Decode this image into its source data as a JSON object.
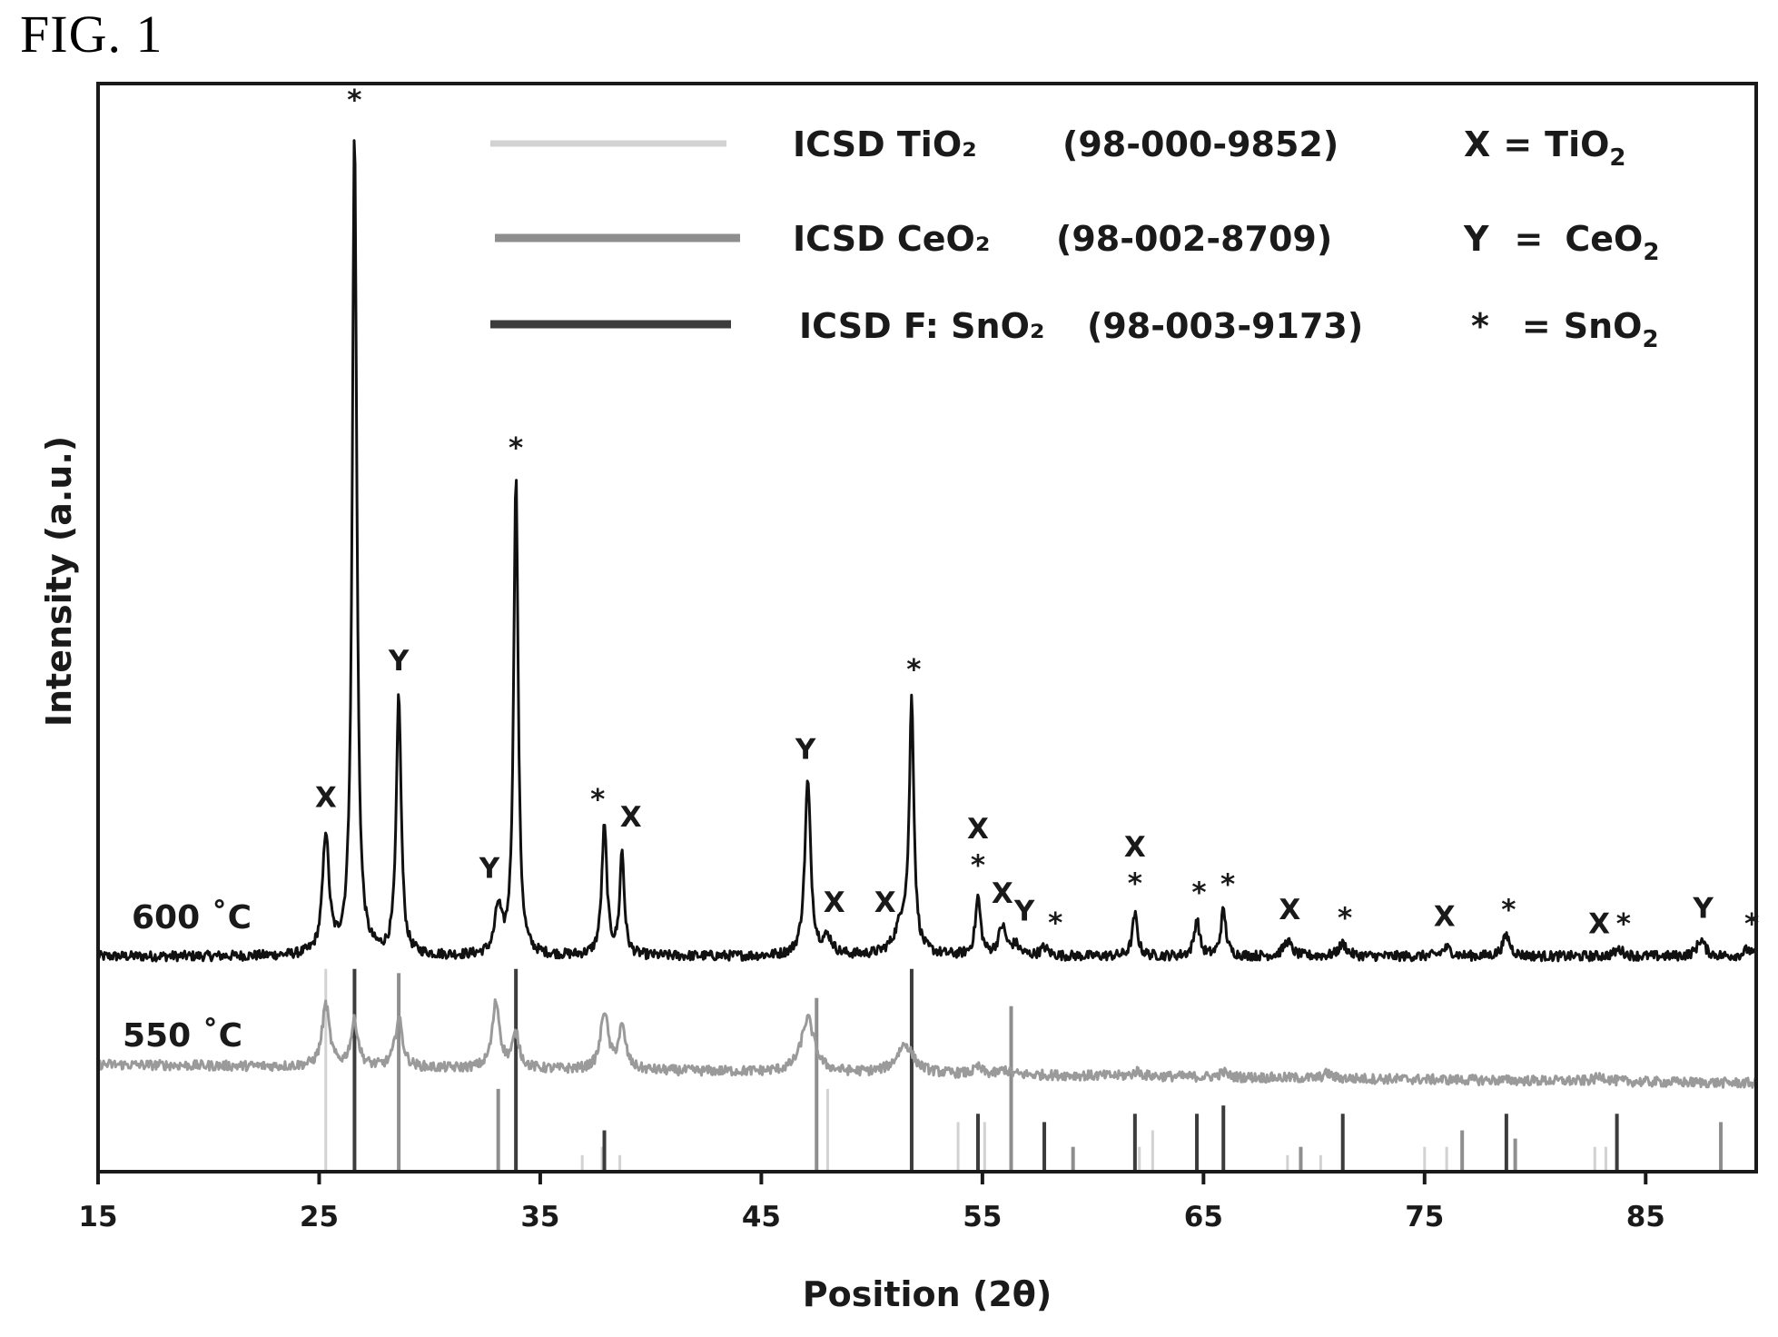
{
  "figure_label": "FIG. 1",
  "chart_data": {
    "type": "line",
    "xlabel": "Position (2θ)",
    "ylabel": "Intensity (a.u.)",
    "xlim": [
      15,
      90
    ],
    "x_ticks": [
      15,
      25,
      35,
      45,
      55,
      65,
      75,
      85
    ],
    "y_ticks_shown": false,
    "colors": {
      "sample_600": "#111111",
      "sample_550": "#9a9a9a",
      "ref_TiO2": "#d2d2d2",
      "ref_CeO2": "#8e8e8e",
      "ref_SnO2": "#3c3c3c"
    },
    "series": [
      {
        "name": "600 ˚C",
        "label": "600 ˚C",
        "color": "#111111",
        "baseline": 0.15,
        "peaks": [
          {
            "x": 25.3,
            "h": 0.145,
            "w": 0.17
          },
          {
            "x": 26.6,
            "h": 1.0,
            "w": 0.12
          },
          {
            "x": 28.6,
            "h": 0.315,
            "w": 0.13
          },
          {
            "x": 33.1,
            "h": 0.055,
            "w": 0.18
          },
          {
            "x": 33.9,
            "h": 0.58,
            "w": 0.12
          },
          {
            "x": 37.9,
            "h": 0.155,
            "w": 0.14
          },
          {
            "x": 38.7,
            "h": 0.125,
            "w": 0.12
          },
          {
            "x": 47.1,
            "h": 0.21,
            "w": 0.16
          },
          {
            "x": 48.0,
            "h": 0.02,
            "w": 0.25
          },
          {
            "x": 51.4,
            "h": 0.04,
            "w": 0.4
          },
          {
            "x": 51.8,
            "h": 0.295,
            "w": 0.12
          },
          {
            "x": 54.8,
            "h": 0.07,
            "w": 0.14
          },
          {
            "x": 55.9,
            "h": 0.035,
            "w": 0.2
          },
          {
            "x": 56.5,
            "h": 0.012,
            "w": 0.2
          },
          {
            "x": 57.8,
            "h": 0.01,
            "w": 0.2
          },
          {
            "x": 61.9,
            "h": 0.05,
            "w": 0.14
          },
          {
            "x": 64.7,
            "h": 0.045,
            "w": 0.14
          },
          {
            "x": 65.9,
            "h": 0.055,
            "w": 0.14
          },
          {
            "x": 68.8,
            "h": 0.018,
            "w": 0.22
          },
          {
            "x": 71.3,
            "h": 0.015,
            "w": 0.22
          },
          {
            "x": 78.7,
            "h": 0.025,
            "w": 0.2
          },
          {
            "x": 76.0,
            "h": 0.01,
            "w": 0.25
          },
          {
            "x": 83.8,
            "h": 0.008,
            "w": 0.25
          },
          {
            "x": 87.5,
            "h": 0.02,
            "w": 0.22
          },
          {
            "x": 89.6,
            "h": 0.008,
            "w": 0.2
          }
        ]
      },
      {
        "name": "550 ˚C",
        "label": "550 ˚C",
        "color": "#9a9a9a",
        "baseline": 0.0,
        "peaks": [
          {
            "x": 25.3,
            "h": 0.075,
            "w": 0.2
          },
          {
            "x": 26.6,
            "h": 0.055,
            "w": 0.2
          },
          {
            "x": 28.6,
            "h": 0.06,
            "w": 0.2
          },
          {
            "x": 33.0,
            "h": 0.08,
            "w": 0.2
          },
          {
            "x": 33.9,
            "h": 0.04,
            "w": 0.2
          },
          {
            "x": 37.9,
            "h": 0.07,
            "w": 0.2
          },
          {
            "x": 38.7,
            "h": 0.05,
            "w": 0.2
          },
          {
            "x": 47.1,
            "h": 0.065,
            "w": 0.35
          },
          {
            "x": 51.5,
            "h": 0.035,
            "w": 0.45
          },
          {
            "x": 54.8,
            "h": 0.008,
            "w": 0.2
          },
          {
            "x": 56.0,
            "h": 0.006,
            "w": 0.2
          },
          {
            "x": 62.0,
            "h": 0.006,
            "w": 0.2
          },
          {
            "x": 65.9,
            "h": 0.006,
            "w": 0.2
          },
          {
            "x": 70.6,
            "h": 0.006,
            "w": 0.2
          },
          {
            "x": 83.0,
            "h": 0.006,
            "w": 0.3
          }
        ]
      }
    ],
    "reference_patterns": [
      {
        "name": "ICSD TiO₂",
        "code": "(98-000-9852)",
        "color": "#d2d2d2",
        "lines": [
          {
            "x": 25.3,
            "h": 0.245
          },
          {
            "x": 36.9,
            "h": 0.02
          },
          {
            "x": 37.8,
            "h": 0.03
          },
          {
            "x": 38.6,
            "h": 0.02
          },
          {
            "x": 48.0,
            "h": 0.1
          },
          {
            "x": 53.9,
            "h": 0.06
          },
          {
            "x": 55.1,
            "h": 0.06
          },
          {
            "x": 62.1,
            "h": 0.03
          },
          {
            "x": 62.7,
            "h": 0.05
          },
          {
            "x": 68.8,
            "h": 0.02
          },
          {
            "x": 70.3,
            "h": 0.02
          },
          {
            "x": 75.0,
            "h": 0.03
          },
          {
            "x": 76.0,
            "h": 0.03
          },
          {
            "x": 82.7,
            "h": 0.03
          },
          {
            "x": 83.2,
            "h": 0.03
          }
        ]
      },
      {
        "name": "ICSD CeO₂",
        "code": "(98-002-8709)",
        "color": "#8e8e8e",
        "lines": [
          {
            "x": 28.6,
            "h": 0.24
          },
          {
            "x": 33.1,
            "h": 0.1
          },
          {
            "x": 47.5,
            "h": 0.21
          },
          {
            "x": 56.3,
            "h": 0.2
          },
          {
            "x": 59.1,
            "h": 0.03
          },
          {
            "x": 69.4,
            "h": 0.03
          },
          {
            "x": 76.7,
            "h": 0.05
          },
          {
            "x": 79.1,
            "h": 0.04
          },
          {
            "x": 88.4,
            "h": 0.06
          }
        ]
      },
      {
        "name": "ICSD F: SnO₂",
        "code": "(98-003-9173)",
        "color": "#3c3c3c",
        "lines": [
          {
            "x": 26.6,
            "h": 0.245
          },
          {
            "x": 33.9,
            "h": 0.245
          },
          {
            "x": 37.9,
            "h": 0.05
          },
          {
            "x": 51.8,
            "h": 0.245
          },
          {
            "x": 54.8,
            "h": 0.07
          },
          {
            "x": 57.8,
            "h": 0.06
          },
          {
            "x": 61.9,
            "h": 0.07
          },
          {
            "x": 64.7,
            "h": 0.07
          },
          {
            "x": 65.9,
            "h": 0.08
          },
          {
            "x": 71.3,
            "h": 0.07
          },
          {
            "x": 78.7,
            "h": 0.07
          },
          {
            "x": 83.7,
            "h": 0.07
          },
          {
            "x": 90.0,
            "h": 0.07
          }
        ]
      }
    ],
    "phase_key": [
      {
        "symbol": "X",
        "eq": "=",
        "phase": "TiO",
        "sub": "2"
      },
      {
        "symbol": "Y",
        "eq": "=",
        "phase": "CeO",
        "sub": "2"
      },
      {
        "symbol": "*",
        "eq": "=",
        "phase": "SnO",
        "sub": "2"
      }
    ],
    "peak_labels": [
      {
        "text": "X",
        "x": 25.3
      },
      {
        "text": "*",
        "x": 26.6
      },
      {
        "text": "Y",
        "x": 28.6
      },
      {
        "text": "Y",
        "x": 32.7
      },
      {
        "text": "*",
        "x": 33.9
      },
      {
        "text": "*",
        "x": 37.6
      },
      {
        "text": "X",
        "x": 39.1
      },
      {
        "text": "Y",
        "x": 47.0
      },
      {
        "text": "X",
        "x": 48.3
      },
      {
        "text": "X",
        "x": 50.6
      },
      {
        "text": "*",
        "x": 51.9
      },
      {
        "text": "X",
        "x": 54.8
      },
      {
        "text": "*",
        "x": 54.8
      },
      {
        "text": "X",
        "x": 55.9
      },
      {
        "text": "Y",
        "x": 56.9
      },
      {
        "text": "*",
        "x": 58.3
      },
      {
        "text": "X",
        "x": 61.9
      },
      {
        "text": "*",
        "x": 61.9
      },
      {
        "text": "*",
        "x": 64.8
      },
      {
        "text": "*",
        "x": 66.1
      },
      {
        "text": "X",
        "x": 68.9
      },
      {
        "text": "*",
        "x": 71.4
      },
      {
        "text": "X",
        "x": 75.9
      },
      {
        "text": "*",
        "x": 78.8
      },
      {
        "text": "X",
        "x": 82.9
      },
      {
        "text": "*",
        "x": 84.0
      },
      {
        "text": "Y",
        "x": 87.6
      },
      {
        "text": "*",
        "x": 89.8
      }
    ]
  }
}
